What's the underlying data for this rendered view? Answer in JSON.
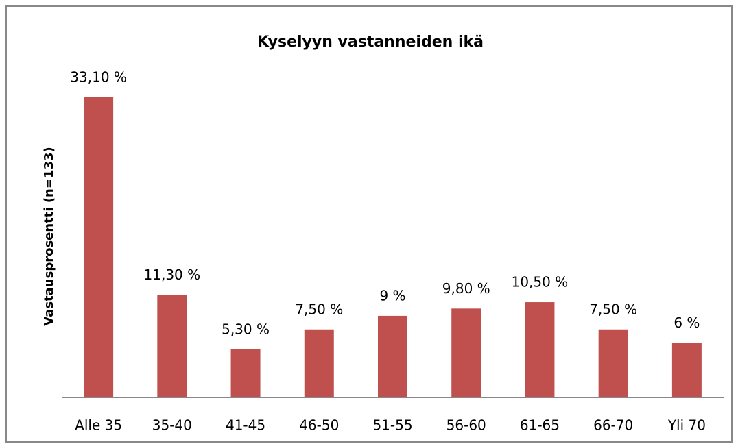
{
  "chart_data": {
    "type": "bar",
    "title": "Kyselyyn vastanneiden ikä",
    "y_label": "Vastausprosentti  (n=133)",
    "categories": [
      "Alle 35",
      "35-40",
      "41-45",
      "46-50",
      "51-55",
      "56-60",
      "61-65",
      "66-70",
      "Yli 70"
    ],
    "values": [
      33.1,
      11.3,
      5.3,
      7.5,
      9,
      9.8,
      10.5,
      7.5,
      6
    ],
    "value_labels": [
      "33,10 %",
      "11,30 %",
      "5,30 %",
      "7,50 %",
      "9 %",
      "9,80 %",
      "10,50 %",
      "7,50 %",
      "6 %"
    ],
    "color": "#c0504d"
  }
}
